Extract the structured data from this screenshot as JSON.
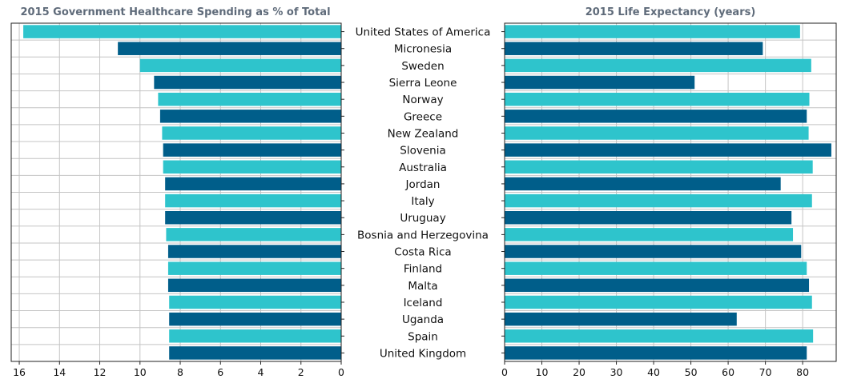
{
  "chart_data": {
    "type": "bar",
    "orientation": "horizontal",
    "categories": [
      "United States of America",
      "Micronesia",
      "Sweden",
      "Sierra Leone",
      "Norway",
      "Greece",
      "New Zealand",
      "Slovenia",
      "Australia",
      "Jordan",
      "Italy",
      "Uruguay",
      "Bosnia and Herzegovina",
      "Costa Rica",
      "Finland",
      "Malta",
      "Iceland",
      "Uganda",
      "Spain",
      "United Kingdom"
    ],
    "colors": [
      "#2ec4cc",
      "#005e8a"
    ],
    "grid": true,
    "panels": [
      {
        "title": "2015 Government Healthcare Spending as % of Total",
        "direction": "reversed",
        "xlim": [
          16.4,
          0
        ],
        "xticks": [
          16,
          14,
          12,
          10,
          8,
          6,
          4,
          2,
          0
        ],
        "values": [
          15.8,
          11.1,
          10.0,
          9.3,
          9.1,
          9.0,
          8.9,
          8.85,
          8.85,
          8.75,
          8.75,
          8.75,
          8.7,
          8.6,
          8.6,
          8.6,
          8.55,
          8.55,
          8.55,
          8.55
        ]
      },
      {
        "title": "2015 Life Expectancy (years)",
        "direction": "normal",
        "xlim": [
          0,
          89
        ],
        "xticks": [
          0,
          10,
          20,
          30,
          40,
          50,
          60,
          70,
          80
        ],
        "values": [
          79.3,
          69.3,
          82.3,
          51.0,
          81.8,
          81.1,
          81.6,
          87.7,
          82.7,
          74.1,
          82.5,
          77.0,
          77.4,
          79.6,
          81.1,
          81.7,
          82.5,
          62.3,
          82.8,
          81.1
        ]
      }
    ]
  }
}
